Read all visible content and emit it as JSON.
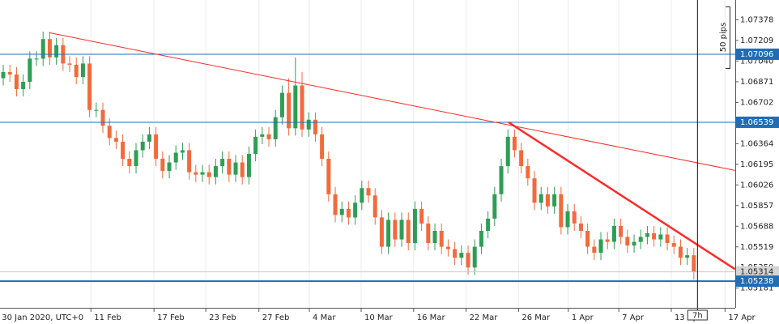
{
  "chart_data": {
    "type": "candlestick",
    "open": [
      1.069,
      1.0695,
      1.0693,
      1.0681,
      1.0687,
      1.0706,
      1.0706,
      1.0722,
      1.0707,
      1.0717,
      1.0702,
      1.0701,
      1.0691,
      1.0702,
      1.0664,
      1.0664,
      1.0651,
      1.0641,
      1.0638,
      1.0624,
      1.0618,
      1.0631,
      1.0638,
      1.0644,
      1.0624,
      1.0614,
      1.0621,
      1.0629,
      1.0631,
      1.0613,
      1.0611,
      1.0613,
      1.0609,
      1.0618,
      1.0624,
      1.0611,
      1.0621,
      1.0609,
      1.0628,
      1.0642,
      1.0644,
      1.064,
      1.0658,
      1.0678,
      1.0649,
      1.0684,
      1.0648,
      1.0656,
      1.0644,
      1.0624,
      1.0595,
      1.0578,
      1.0583,
      1.0576,
      1.0588,
      1.06,
      1.0594,
      1.0576,
      1.0552,
      1.0574,
      1.0558,
      1.0574,
      1.0555,
      1.0583,
      1.0571,
      1.0555,
      1.0565,
      1.0552,
      1.055,
      1.0543,
      1.0547,
      1.0535,
      1.0552,
      1.0565,
      1.0575,
      1.0595,
      1.0618,
      1.0642,
      1.0631,
      1.0618,
      1.0608,
      1.0588,
      1.0595,
      1.0585,
      1.0595,
      1.0568,
      1.0581,
      1.0571,
      1.0565,
      1.0552,
      1.0547,
      1.0558,
      1.0556,
      1.0569,
      1.056,
      1.0553,
      1.0556,
      1.056,
      1.0563,
      1.0558,
      1.0562,
      1.0555,
      1.0552,
      1.0543,
      1.0545
    ],
    "high": [
      1.0701,
      1.0701,
      1.0699,
      1.0693,
      1.0712,
      1.0712,
      1.0728,
      1.0728,
      1.0723,
      1.0723,
      1.0708,
      1.0707,
      1.0708,
      1.0708,
      1.067,
      1.067,
      1.0657,
      1.0647,
      1.0644,
      1.063,
      1.0637,
      1.0644,
      1.065,
      1.065,
      1.063,
      1.0627,
      1.0635,
      1.0637,
      1.0637,
      1.0619,
      1.0619,
      1.0619,
      1.0624,
      1.063,
      1.063,
      1.0627,
      1.0627,
      1.0634,
      1.0648,
      1.065,
      1.065,
      1.0664,
      1.0684,
      1.069,
      1.0707,
      1.0695,
      1.0662,
      1.0662,
      1.065,
      1.063,
      1.0601,
      1.0589,
      1.0589,
      1.0594,
      1.0606,
      1.0606,
      1.06,
      1.0582,
      1.058,
      1.058,
      1.058,
      1.058,
      1.0589,
      1.0589,
      1.0577,
      1.0571,
      1.0571,
      1.0558,
      1.0556,
      1.0553,
      1.0553,
      1.0558,
      1.0571,
      1.0581,
      1.0601,
      1.0624,
      1.0648,
      1.0648,
      1.0637,
      1.0624,
      1.0614,
      1.0601,
      1.0601,
      1.0601,
      1.0601,
      1.0587,
      1.0587,
      1.0577,
      1.0571,
      1.0558,
      1.0564,
      1.0564,
      1.0575,
      1.0575,
      1.0566,
      1.0562,
      1.0566,
      1.0569,
      1.0569,
      1.0568,
      1.0568,
      1.0561,
      1.0558,
      1.0551,
      1.0551
    ],
    "low": [
      1.0684,
      1.0687,
      1.0675,
      1.0675,
      1.0681,
      1.07,
      1.07,
      1.0701,
      1.0701,
      1.0696,
      1.0695,
      1.0685,
      1.0685,
      1.0658,
      1.0658,
      1.0645,
      1.0635,
      1.0632,
      1.0618,
      1.0612,
      1.0612,
      1.0625,
      1.0632,
      1.0618,
      1.0608,
      1.0608,
      1.0615,
      1.0623,
      1.0607,
      1.0605,
      1.0605,
      1.0603,
      1.0603,
      1.0612,
      1.0605,
      1.0605,
      1.0603,
      1.0603,
      1.0622,
      1.0636,
      1.0634,
      1.0634,
      1.0652,
      1.0643,
      1.0643,
      1.0642,
      1.0642,
      1.0638,
      1.0618,
      1.0589,
      1.0572,
      1.0572,
      1.057,
      1.057,
      1.0582,
      1.0588,
      1.057,
      1.0546,
      1.0546,
      1.0552,
      1.0552,
      1.0549,
      1.0549,
      1.0565,
      1.0549,
      1.0549,
      1.0546,
      1.0544,
      1.0537,
      1.0537,
      1.0529,
      1.0529,
      1.0546,
      1.0559,
      1.0569,
      1.0589,
      1.0612,
      1.0625,
      1.0612,
      1.0602,
      1.0582,
      1.0582,
      1.0579,
      1.0579,
      1.0562,
      1.0562,
      1.0565,
      1.0559,
      1.0546,
      1.0541,
      1.0541,
      1.055,
      1.055,
      1.0554,
      1.0547,
      1.0547,
      1.055,
      1.0554,
      1.0552,
      1.0552,
      1.0549,
      1.0546,
      1.0537,
      1.0537,
      1.0525
    ],
    "close": [
      1.0695,
      1.0693,
      1.0681,
      1.0687,
      1.0706,
      1.0706,
      1.0722,
      1.0707,
      1.0717,
      1.0702,
      1.0701,
      1.0691,
      1.0702,
      1.0664,
      1.0664,
      1.0651,
      1.0641,
      1.0638,
      1.0624,
      1.0618,
      1.0631,
      1.0638,
      1.0644,
      1.0624,
      1.0614,
      1.0621,
      1.0629,
      1.0631,
      1.0613,
      1.0611,
      1.0613,
      1.0609,
      1.0618,
      1.0624,
      1.0611,
      1.0621,
      1.0609,
      1.0628,
      1.0642,
      1.0644,
      1.064,
      1.0658,
      1.0678,
      1.0649,
      1.0684,
      1.0648,
      1.0656,
      1.0644,
      1.0624,
      1.0595,
      1.0578,
      1.0583,
      1.0576,
      1.0588,
      1.06,
      1.0594,
      1.0576,
      1.0552,
      1.0574,
      1.0558,
      1.0574,
      1.0555,
      1.0583,
      1.0571,
      1.0555,
      1.0565,
      1.0552,
      1.055,
      1.0543,
      1.0547,
      1.0535,
      1.0552,
      1.0565,
      1.0575,
      1.0595,
      1.0618,
      1.0642,
      1.0631,
      1.0618,
      1.0608,
      1.0588,
      1.0595,
      1.0585,
      1.0595,
      1.0568,
      1.0581,
      1.0571,
      1.0565,
      1.0552,
      1.0547,
      1.0558,
      1.0556,
      1.0569,
      1.056,
      1.0553,
      1.0556,
      1.056,
      1.0563,
      1.0558,
      1.0562,
      1.0555,
      1.0552,
      1.0543,
      1.0545,
      1.05314
    ],
    "up_color": "#2e9e55",
    "down_color": "#f26a3b",
    "xlim": [
      -0.49,
      110.24
    ],
    "ylim": [
      1.0502,
      1.0754
    ],
    "yticks": [
      1.07378,
      1.07209,
      {
        "value": 1.0704,
        "label": "1.07040"
      },
      1.06871,
      1.06702,
      1.06533,
      1.06364,
      1.06195,
      1.06026,
      1.05857,
      1.05688,
      1.05519,
      {
        "value": 1.0535,
        "label": "1.05350"
      },
      1.05181
    ],
    "xticks": [
      {
        "value": -0.7,
        "label": "30 Jan 2020, UTC+0"
      },
      {
        "value": 13.2,
        "label": "11 Feb"
      },
      {
        "value": 22.7,
        "label": "17 Feb"
      },
      {
        "value": 30.5,
        "label": "23 Feb"
      },
      {
        "value": 38.5,
        "label": "27 Feb"
      },
      {
        "value": 46.1,
        "label": "4 Mar"
      },
      {
        "value": 53.9,
        "label": "10 Mar"
      },
      {
        "value": 61.8,
        "label": "16 Mar"
      },
      {
        "value": 69.7,
        "label": "22 Mar"
      },
      {
        "value": 77.6,
        "label": "26 Mar"
      },
      {
        "value": 85.1,
        "label": "1 Apr"
      },
      {
        "value": 92.7,
        "label": "7 Apr"
      },
      {
        "value": 100.6,
        "label": "13 Apr"
      },
      {
        "value": 108.7,
        "label": "17 Apr"
      }
    ],
    "grid": true,
    "levels": [
      {
        "value": 1.07096,
        "color": "#1f6db5",
        "line_width": 1
      },
      {
        "value": 1.06539,
        "color": "#1f6db5",
        "line_width": 1
      },
      {
        "value": 1.05238,
        "color": "#1f6db5",
        "line_width": 2
      }
    ],
    "current_price": 1.05314,
    "trendlines": [
      {
        "x": [
          6.95,
          110.2
        ],
        "y": [
          1.07272,
          1.06145
        ],
        "color": "#ff2a2a",
        "line_width": 1
      },
      {
        "x": [
          76.1,
          110.2
        ],
        "y": [
          1.06539,
          1.05336
        ],
        "color": "#ff2a2a",
        "line_width": 2.5
      }
    ],
    "annotations": [
      "50 pips",
      "7h"
    ]
  }
}
